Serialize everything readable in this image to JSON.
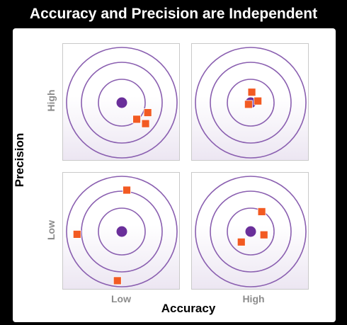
{
  "title": "Accuracy and Precision are Independent",
  "x_axis": {
    "label": "Accuracy",
    "ticks": [
      "Low",
      "High"
    ]
  },
  "y_axis": {
    "label": "Precision",
    "ticks": [
      "High",
      "Low"
    ]
  },
  "colors": {
    "ring": "#8a5fb0",
    "bullseye": "#6a2f9a",
    "marker": "#f25a22",
    "background_frame": "#000000"
  },
  "targets": [
    {
      "name": "high-precision-low-accuracy",
      "precision": "High",
      "accuracy": "Low",
      "hits": [
        [
          0.27,
          -0.3
        ],
        [
          0.47,
          -0.18
        ],
        [
          0.43,
          -0.38
        ]
      ]
    },
    {
      "name": "high-precision-high-accuracy",
      "precision": "High",
      "accuracy": "High",
      "hits": [
        [
          0.02,
          0.19
        ],
        [
          0.13,
          0.03
        ],
        [
          -0.04,
          -0.03
        ]
      ]
    },
    {
      "name": "low-precision-low-accuracy",
      "precision": "Low",
      "accuracy": "Low",
      "hits": [
        [
          0.09,
          0.75
        ],
        [
          -0.81,
          -0.05
        ],
        [
          -0.08,
          -0.89
        ]
      ]
    },
    {
      "name": "low-precision-high-accuracy",
      "precision": "Low",
      "accuracy": "High",
      "hits": [
        [
          0.2,
          0.36
        ],
        [
          0.24,
          -0.06
        ],
        [
          -0.17,
          -0.19
        ]
      ]
    }
  ]
}
